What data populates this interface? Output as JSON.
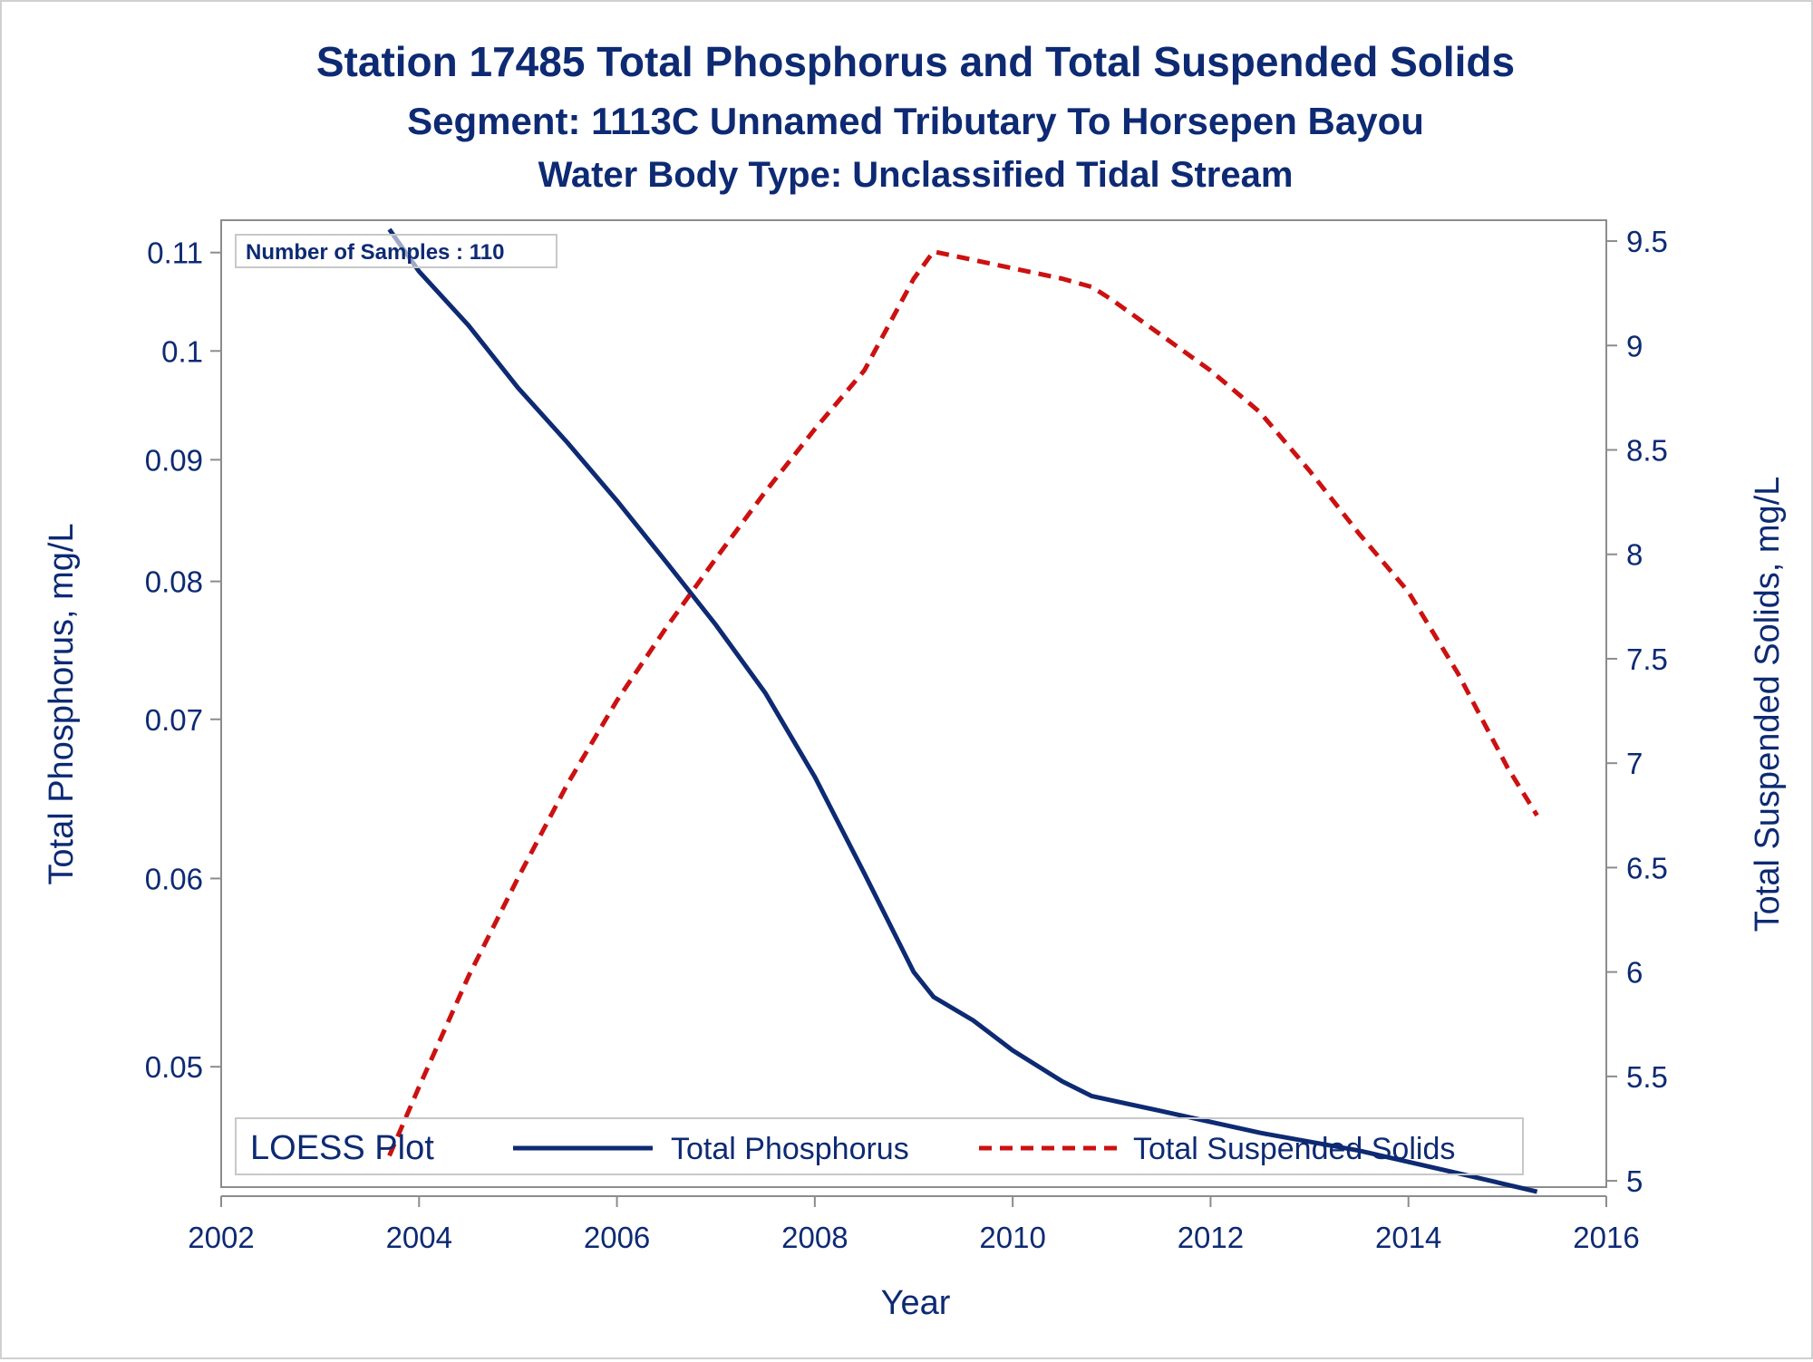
{
  "chart_data": {
    "type": "line",
    "title": "Station 17485  Total Phosphorus and Total Suspended Solids",
    "subtitle": "Segment: 1113C  Unnamed Tributary To Horsepen Bayou",
    "subtitle2": "Water Body Type: Unclassified Tidal Stream",
    "xlabel": "Year",
    "ylabel_left": "Total Phosphorus, mg/L",
    "ylabel_right": "Total Suspended Solids, mg/L",
    "annotation": "Number of Samples : 110",
    "legend": {
      "title": "LOESS Plot",
      "position": "bottom-inside",
      "entries": [
        "Total Phosphorus",
        "Total Suspended Solids"
      ]
    },
    "xlim": [
      2002,
      2016
    ],
    "x_ticks": [
      "2002",
      "2004",
      "2006",
      "2008",
      "2010",
      "2012",
      "2014",
      "2016"
    ],
    "ylim_left": [
      0.0445,
      0.1135
    ],
    "y_left_scale": "log",
    "y_left_ticks": [
      "0.05",
      "0.06",
      "0.07",
      "0.08",
      "0.09",
      "0.1",
      "0.11"
    ],
    "ylim_right": [
      4.97,
      9.6
    ],
    "y_right_ticks": [
      "5",
      "5.5",
      "6",
      "6.5",
      "7",
      "7.5",
      "8",
      "8.5",
      "9",
      "9.5"
    ],
    "grid": false,
    "colors": {
      "text": "#0d2a73",
      "phosphorus": "#0d2a73",
      "tss": "#cc1111",
      "axis": "#8c8c8c"
    },
    "series": [
      {
        "name": "Total Phosphorus",
        "axis": "left",
        "style": "solid",
        "x": [
          2003.7,
          2004.0,
          2004.5,
          2005.0,
          2005.5,
          2006.0,
          2006.5,
          2007.0,
          2007.5,
          2008.0,
          2008.5,
          2009.0,
          2009.2,
          2009.6,
          2010.0,
          2010.5,
          2010.8,
          2011.0,
          2011.5,
          2012.0,
          2012.5,
          2013.0,
          2013.5,
          2014.0,
          2014.5,
          2015.0,
          2015.3
        ],
        "y": [
          0.1125,
          0.108,
          0.1025,
          0.0965,
          0.0915,
          0.0865,
          0.0815,
          0.0767,
          0.0718,
          0.0662,
          0.0603,
          0.0548,
          0.0535,
          0.0523,
          0.0508,
          0.0493,
          0.0486,
          0.0484,
          0.0479,
          0.0474,
          0.0469,
          0.0465,
          0.0461,
          0.0456,
          0.0451,
          0.0446,
          0.0443
        ]
      },
      {
        "name": "Total Suspended Solids",
        "axis": "right",
        "style": "dashed",
        "x": [
          2003.7,
          2004.0,
          2004.5,
          2005.0,
          2005.5,
          2006.0,
          2006.5,
          2007.0,
          2007.5,
          2008.0,
          2008.5,
          2009.0,
          2009.2,
          2009.5,
          2010.0,
          2010.5,
          2010.8,
          2011.0,
          2011.5,
          2012.0,
          2012.5,
          2013.0,
          2013.5,
          2014.0,
          2014.5,
          2015.0,
          2015.3
        ],
        "y": [
          5.12,
          5.45,
          5.98,
          6.45,
          6.9,
          7.3,
          7.65,
          7.98,
          8.3,
          8.6,
          8.88,
          9.32,
          9.45,
          9.42,
          9.37,
          9.32,
          9.28,
          9.22,
          9.05,
          8.88,
          8.68,
          8.4,
          8.1,
          7.82,
          7.43,
          6.98,
          6.75
        ]
      }
    ]
  }
}
